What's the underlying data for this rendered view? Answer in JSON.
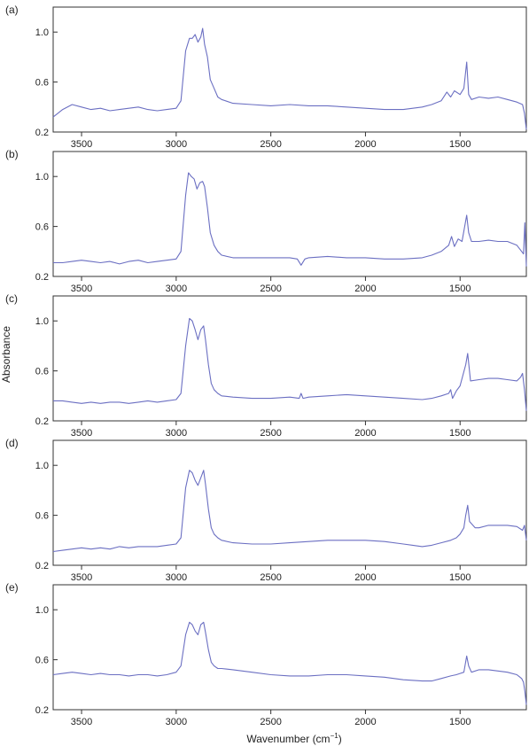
{
  "figure": {
    "ylabel": "Absorbance",
    "xlabel_main": "Wavenumber (cm",
    "xlabel_sup": "−1",
    "xlabel_close": ")"
  },
  "colors": {
    "trace": "#6b6fc2",
    "axis": "#333333",
    "text": "#222222"
  },
  "chart_data": [
    {
      "type": "line",
      "panel": "(a)",
      "xlim": [
        3650,
        1150
      ],
      "ylim": [
        0.2,
        1.2
      ],
      "x_reversed": true,
      "xticks": [
        3500,
        3000,
        2500,
        2000,
        1500
      ],
      "yticks": [
        0.2,
        0.6,
        1.0
      ],
      "xticklabels": [
        "3500",
        "3000",
        "2500",
        "2000",
        "1500"
      ],
      "yticklabels": [
        "0.2",
        "0.6",
        "1.0"
      ],
      "series": [
        {
          "x": [
            3650,
            3600,
            3550,
            3500,
            3450,
            3400,
            3350,
            3300,
            3250,
            3200,
            3150,
            3100,
            3050,
            3000,
            2975,
            2950,
            2930,
            2915,
            2900,
            2885,
            2870,
            2860,
            2850,
            2835,
            2820,
            2800,
            2780,
            2760,
            2700,
            2600,
            2500,
            2400,
            2300,
            2200,
            2100,
            2000,
            1900,
            1800,
            1700,
            1650,
            1600,
            1570,
            1550,
            1530,
            1500,
            1480,
            1465,
            1455,
            1440,
            1400,
            1350,
            1300,
            1250,
            1200,
            1170,
            1160,
            1150
          ],
          "y": [
            0.32,
            0.38,
            0.42,
            0.4,
            0.38,
            0.39,
            0.37,
            0.38,
            0.39,
            0.4,
            0.38,
            0.37,
            0.38,
            0.39,
            0.45,
            0.85,
            0.95,
            0.95,
            0.98,
            0.92,
            0.96,
            1.03,
            0.9,
            0.8,
            0.62,
            0.55,
            0.48,
            0.46,
            0.43,
            0.42,
            0.41,
            0.42,
            0.41,
            0.41,
            0.4,
            0.39,
            0.38,
            0.38,
            0.4,
            0.42,
            0.45,
            0.52,
            0.48,
            0.53,
            0.5,
            0.55,
            0.76,
            0.5,
            0.46,
            0.48,
            0.47,
            0.48,
            0.46,
            0.44,
            0.42,
            0.35,
            0.22
          ]
        }
      ]
    },
    {
      "type": "line",
      "panel": "(b)",
      "xlim": [
        3650,
        1150
      ],
      "ylim": [
        0.2,
        1.2
      ],
      "x_reversed": true,
      "xticks": [
        3500,
        3000,
        2500,
        2000,
        1500
      ],
      "yticks": [
        0.2,
        0.6,
        1.0
      ],
      "xticklabels": [
        "3500",
        "3000",
        "2500",
        "2000",
        "1500"
      ],
      "yticklabels": [
        "0.2",
        "0.6",
        "1.0"
      ],
      "series": [
        {
          "x": [
            3650,
            3600,
            3550,
            3500,
            3450,
            3400,
            3350,
            3300,
            3250,
            3200,
            3150,
            3100,
            3050,
            3000,
            2975,
            2950,
            2935,
            2920,
            2905,
            2890,
            2875,
            2860,
            2850,
            2835,
            2820,
            2800,
            2780,
            2760,
            2700,
            2600,
            2500,
            2400,
            2360,
            2340,
            2320,
            2300,
            2200,
            2100,
            2000,
            1900,
            1800,
            1700,
            1650,
            1600,
            1560,
            1545,
            1530,
            1510,
            1490,
            1465,
            1455,
            1440,
            1400,
            1350,
            1300,
            1250,
            1200,
            1175,
            1165,
            1158,
            1150
          ],
          "y": [
            0.31,
            0.31,
            0.32,
            0.33,
            0.32,
            0.31,
            0.32,
            0.3,
            0.32,
            0.33,
            0.31,
            0.32,
            0.33,
            0.34,
            0.4,
            0.85,
            1.03,
            1.0,
            0.98,
            0.9,
            0.95,
            0.96,
            0.92,
            0.75,
            0.55,
            0.45,
            0.4,
            0.37,
            0.35,
            0.35,
            0.35,
            0.35,
            0.34,
            0.29,
            0.34,
            0.35,
            0.36,
            0.35,
            0.35,
            0.34,
            0.34,
            0.35,
            0.37,
            0.4,
            0.45,
            0.52,
            0.44,
            0.5,
            0.48,
            0.69,
            0.55,
            0.48,
            0.48,
            0.49,
            0.48,
            0.48,
            0.45,
            0.4,
            0.38,
            0.63,
            0.28
          ]
        }
      ]
    },
    {
      "type": "line",
      "panel": "(c)",
      "ylabel": "Absorbance",
      "xlim": [
        3650,
        1150
      ],
      "ylim": [
        0.2,
        1.2
      ],
      "x_reversed": true,
      "xticks": [
        3500,
        3000,
        2500,
        2000,
        1500
      ],
      "yticks": [
        0.2,
        0.6,
        1.0
      ],
      "xticklabels": [
        "3500",
        "3000",
        "2500",
        "2000",
        "1500"
      ],
      "yticklabels": [
        "0.2",
        "0.6",
        "1.0"
      ],
      "series": [
        {
          "x": [
            3650,
            3600,
            3550,
            3500,
            3450,
            3400,
            3350,
            3300,
            3250,
            3200,
            3150,
            3100,
            3050,
            3000,
            2975,
            2950,
            2930,
            2915,
            2900,
            2885,
            2870,
            2855,
            2845,
            2830,
            2815,
            2800,
            2780,
            2760,
            2700,
            2600,
            2500,
            2400,
            2350,
            2340,
            2330,
            2300,
            2200,
            2100,
            2000,
            1900,
            1800,
            1700,
            1650,
            1600,
            1560,
            1550,
            1540,
            1520,
            1500,
            1470,
            1460,
            1445,
            1400,
            1350,
            1300,
            1250,
            1200,
            1180,
            1170,
            1160,
            1150
          ],
          "y": [
            0.36,
            0.36,
            0.35,
            0.34,
            0.35,
            0.34,
            0.35,
            0.35,
            0.34,
            0.35,
            0.36,
            0.35,
            0.36,
            0.37,
            0.42,
            0.8,
            1.02,
            1.0,
            0.93,
            0.85,
            0.93,
            0.96,
            0.85,
            0.65,
            0.5,
            0.45,
            0.42,
            0.4,
            0.39,
            0.38,
            0.38,
            0.39,
            0.38,
            0.42,
            0.38,
            0.39,
            0.4,
            0.41,
            0.4,
            0.39,
            0.38,
            0.37,
            0.38,
            0.4,
            0.42,
            0.45,
            0.38,
            0.44,
            0.48,
            0.65,
            0.74,
            0.52,
            0.53,
            0.54,
            0.54,
            0.53,
            0.52,
            0.55,
            0.58,
            0.45,
            0.28
          ]
        }
      ]
    },
    {
      "type": "line",
      "panel": "(d)",
      "xlim": [
        3650,
        1150
      ],
      "ylim": [
        0.2,
        1.2
      ],
      "x_reversed": true,
      "xticks": [
        3500,
        3000,
        2500,
        2000,
        1500
      ],
      "yticks": [
        0.2,
        0.6,
        1.0
      ],
      "xticklabels": [
        "3500",
        "3000",
        "2500",
        "2000",
        "1500"
      ],
      "yticklabels": [
        "0.2",
        "0.6",
        "1.0"
      ],
      "series": [
        {
          "x": [
            3650,
            3600,
            3550,
            3500,
            3450,
            3400,
            3350,
            3300,
            3250,
            3200,
            3150,
            3100,
            3050,
            3000,
            2975,
            2950,
            2930,
            2915,
            2900,
            2885,
            2870,
            2855,
            2845,
            2830,
            2815,
            2800,
            2780,
            2760,
            2700,
            2600,
            2500,
            2400,
            2300,
            2200,
            2100,
            2000,
            1900,
            1800,
            1750,
            1700,
            1650,
            1600,
            1550,
            1520,
            1500,
            1480,
            1470,
            1460,
            1450,
            1420,
            1400,
            1350,
            1300,
            1250,
            1200,
            1170,
            1160,
            1150
          ],
          "y": [
            0.31,
            0.32,
            0.33,
            0.34,
            0.33,
            0.34,
            0.33,
            0.35,
            0.34,
            0.35,
            0.35,
            0.35,
            0.36,
            0.37,
            0.42,
            0.82,
            0.96,
            0.94,
            0.88,
            0.84,
            0.9,
            0.96,
            0.85,
            0.65,
            0.5,
            0.45,
            0.42,
            0.4,
            0.38,
            0.37,
            0.37,
            0.38,
            0.39,
            0.4,
            0.4,
            0.4,
            0.39,
            0.37,
            0.36,
            0.35,
            0.36,
            0.38,
            0.4,
            0.42,
            0.45,
            0.5,
            0.6,
            0.68,
            0.55,
            0.5,
            0.5,
            0.52,
            0.52,
            0.52,
            0.51,
            0.48,
            0.52,
            0.4
          ]
        }
      ]
    },
    {
      "type": "line",
      "panel": "(e)",
      "xlim": [
        3650,
        1150
      ],
      "ylim": [
        0.2,
        1.2
      ],
      "x_reversed": true,
      "xticks": [
        3500,
        3000,
        2500,
        2000,
        1500
      ],
      "yticks": [
        0.2,
        0.6,
        1.0
      ],
      "xticklabels": [
        "3500",
        "3000",
        "2500",
        "2000",
        "1500"
      ],
      "yticklabels": [
        "0.2",
        "0.6",
        "1.0"
      ],
      "xlabel": "Wavenumber (cm−1)",
      "series": [
        {
          "x": [
            3650,
            3600,
            3550,
            3500,
            3450,
            3400,
            3350,
            3300,
            3250,
            3200,
            3150,
            3100,
            3050,
            3000,
            2975,
            2950,
            2930,
            2915,
            2900,
            2885,
            2870,
            2855,
            2845,
            2830,
            2815,
            2800,
            2780,
            2760,
            2700,
            2600,
            2500,
            2400,
            2300,
            2200,
            2100,
            2000,
            1900,
            1800,
            1700,
            1650,
            1600,
            1550,
            1520,
            1500,
            1480,
            1465,
            1455,
            1440,
            1400,
            1350,
            1300,
            1250,
            1200,
            1175,
            1165,
            1158,
            1150
          ],
          "y": [
            0.48,
            0.49,
            0.5,
            0.49,
            0.48,
            0.49,
            0.48,
            0.48,
            0.47,
            0.48,
            0.48,
            0.47,
            0.48,
            0.5,
            0.55,
            0.8,
            0.9,
            0.88,
            0.83,
            0.8,
            0.88,
            0.9,
            0.82,
            0.68,
            0.58,
            0.55,
            0.53,
            0.53,
            0.52,
            0.5,
            0.48,
            0.47,
            0.47,
            0.48,
            0.48,
            0.47,
            0.46,
            0.44,
            0.43,
            0.43,
            0.45,
            0.47,
            0.48,
            0.49,
            0.5,
            0.63,
            0.55,
            0.5,
            0.52,
            0.52,
            0.51,
            0.5,
            0.48,
            0.45,
            0.42,
            0.35,
            0.24
          ]
        }
      ]
    }
  ]
}
